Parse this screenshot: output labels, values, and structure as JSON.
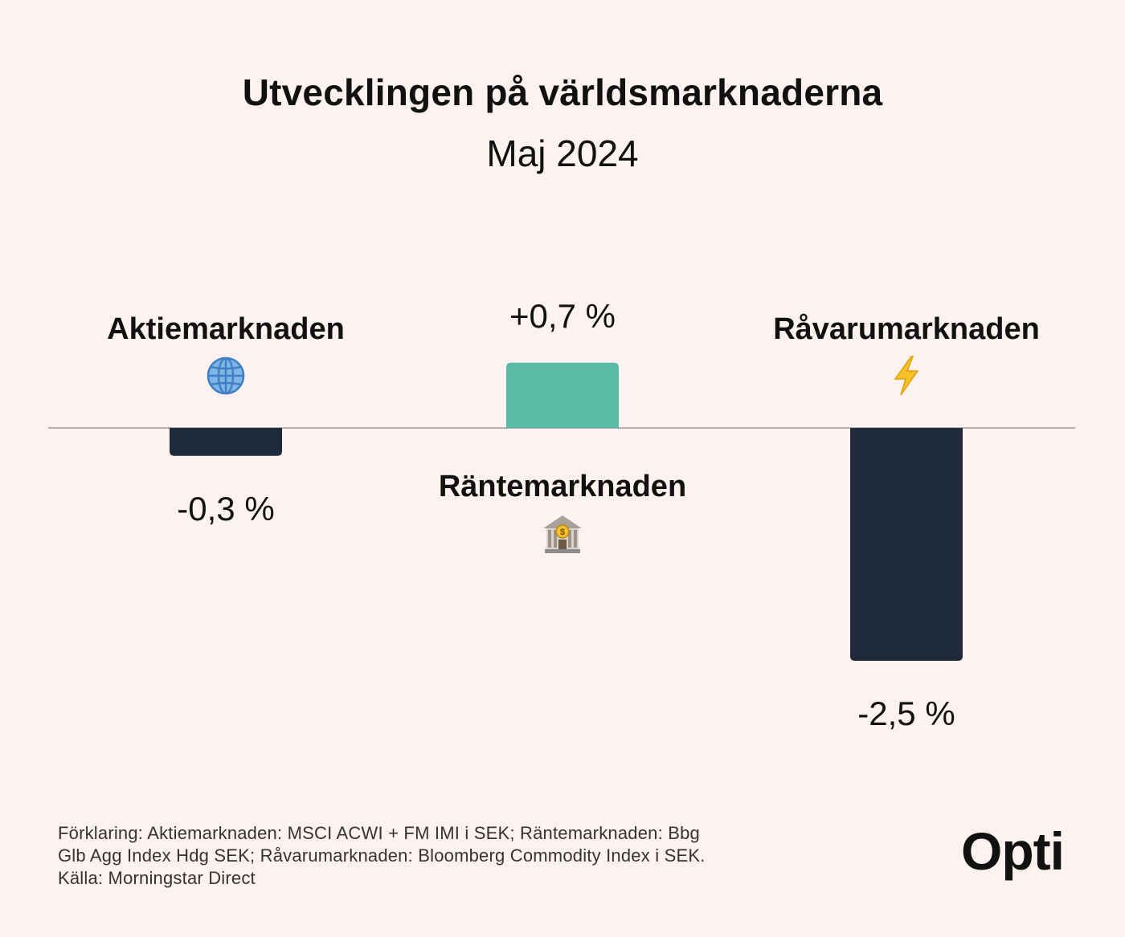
{
  "header": {
    "title": "Utvecklingen på världsmarknaderna",
    "subtitle": "Maj 2024"
  },
  "chart_data": {
    "type": "bar",
    "title": "Utvecklingen på världsmarknaderna",
    "subtitle": "Maj 2024",
    "categories": [
      "Aktiemarknaden",
      "Räntemarknaden",
      "Råvarumarknaden"
    ],
    "values": [
      -0.3,
      0.7,
      -2.5
    ],
    "value_labels": [
      "-0,3 %",
      "+0,7 %",
      "-2,5 %"
    ],
    "icons": [
      "globe-icon",
      "bank-icon",
      "lightning-icon"
    ],
    "colors": {
      "positive": "#58bba6",
      "negative": "#1f2a3a",
      "baseline": "#9a9a9a"
    },
    "ylim": [
      -2.5,
      0.7
    ],
    "grid": false,
    "legend": "none"
  },
  "footer": {
    "note_line1": "Förklaring: Aktiemarknaden: MSCI ACWI + FM IMI i SEK; Räntemarknaden: Bbg",
    "note_line2": "Glb Agg Index Hdg SEK; Råvarumarknaden: Bloomberg Commodity Index i SEK.",
    "note_line3": "Källa: Morningstar Direct",
    "logo": "Opti"
  }
}
